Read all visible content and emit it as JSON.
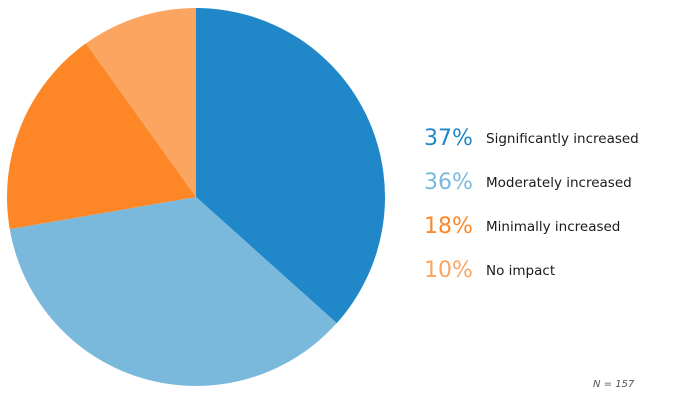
{
  "chart_data": {
    "type": "pie",
    "slices": [
      {
        "label": "Significantly increased",
        "pct_label": "37%",
        "value": 37,
        "color": "#2088c9"
      },
      {
        "label": "Moderately increased",
        "pct_label": "36%",
        "value": 36,
        "color": "#7bb9dc"
      },
      {
        "label": "Minimally increased",
        "pct_label": "18%",
        "value": 18,
        "color": "#fd8726"
      },
      {
        "label": "No impact",
        "pct_label": "10%",
        "value": 10,
        "color": "#fba561"
      }
    ],
    "start_angle": "12 o'clock",
    "direction": "clockwise",
    "legend_position": "right"
  },
  "footnote": "N = 157"
}
